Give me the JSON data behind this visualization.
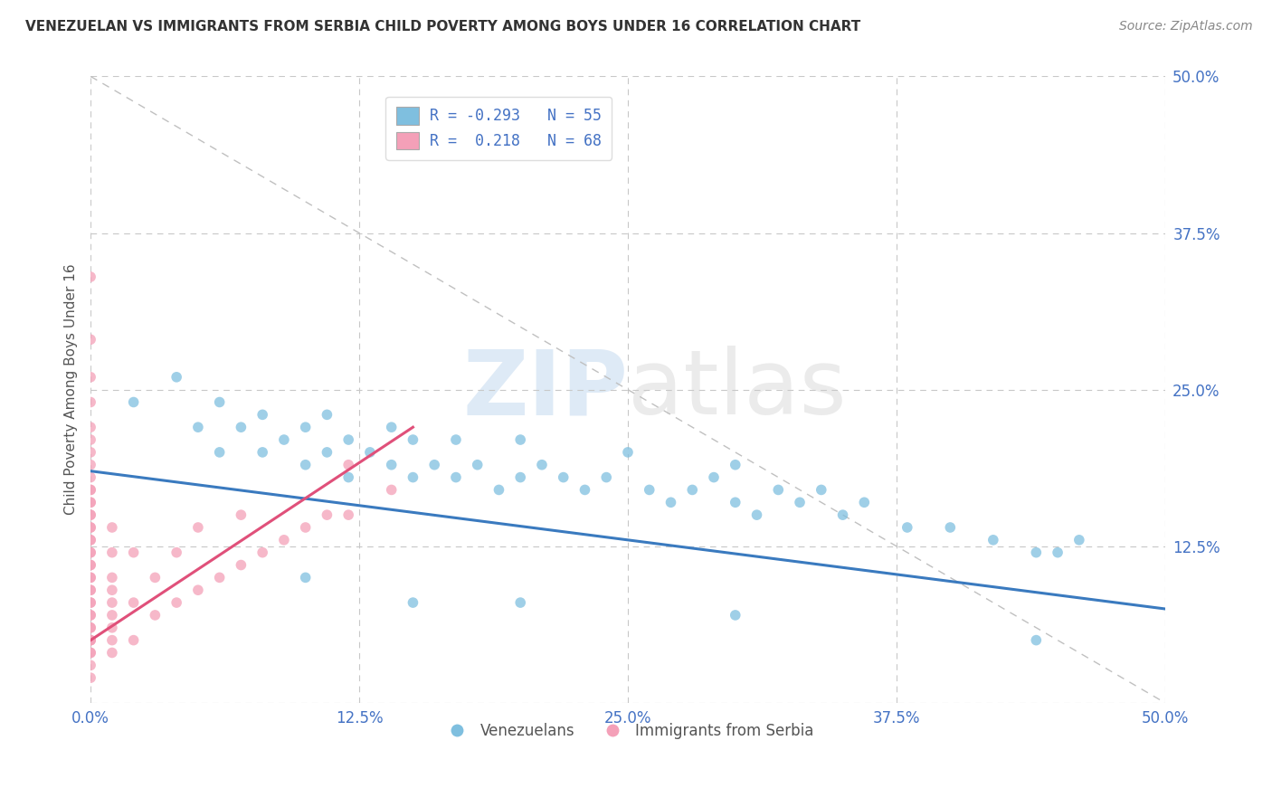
{
  "title": "VENEZUELAN VS IMMIGRANTS FROM SERBIA CHILD POVERTY AMONG BOYS UNDER 16 CORRELATION CHART",
  "source": "Source: ZipAtlas.com",
  "ylabel": "Child Poverty Among Boys Under 16",
  "xlim": [
    0.0,
    0.5
  ],
  "ylim": [
    0.0,
    0.5
  ],
  "xtick_vals": [
    0.0,
    0.125,
    0.25,
    0.375,
    0.5
  ],
  "xtick_labels": [
    "0.0%",
    "12.5%",
    "25.0%",
    "37.5%",
    "50.0%"
  ],
  "ytick_vals": [
    0.0,
    0.125,
    0.25,
    0.375,
    0.5
  ],
  "ytick_labels": [
    "",
    "12.5%",
    "25.0%",
    "37.5%",
    "50.0%"
  ],
  "blue_color": "#7fbfdf",
  "pink_color": "#f4a0b8",
  "blue_line_color": "#3a7abf",
  "pink_line_color": "#e0507a",
  "watermark_zip": "ZIP",
  "watermark_atlas": "atlas",
  "legend_line1": "R = -0.293   N = 55",
  "legend_line2": "R =  0.218   N = 68",
  "venezuelan_label": "Venezuelans",
  "serbia_label": "Immigrants from Serbia",
  "blue_scatter_x": [
    0.02,
    0.04,
    0.05,
    0.06,
    0.06,
    0.07,
    0.08,
    0.08,
    0.09,
    0.1,
    0.1,
    0.11,
    0.11,
    0.12,
    0.12,
    0.13,
    0.14,
    0.14,
    0.15,
    0.15,
    0.16,
    0.17,
    0.17,
    0.18,
    0.19,
    0.2,
    0.2,
    0.21,
    0.22,
    0.23,
    0.24,
    0.25,
    0.26,
    0.27,
    0.28,
    0.29,
    0.3,
    0.3,
    0.31,
    0.32,
    0.33,
    0.34,
    0.35,
    0.36,
    0.38,
    0.4,
    0.42,
    0.44,
    0.45,
    0.46,
    0.1,
    0.15,
    0.2,
    0.3,
    0.44
  ],
  "blue_scatter_y": [
    0.24,
    0.26,
    0.22,
    0.2,
    0.24,
    0.22,
    0.2,
    0.23,
    0.21,
    0.19,
    0.22,
    0.2,
    0.23,
    0.18,
    0.21,
    0.2,
    0.19,
    0.22,
    0.18,
    0.21,
    0.19,
    0.18,
    0.21,
    0.19,
    0.17,
    0.18,
    0.21,
    0.19,
    0.18,
    0.17,
    0.18,
    0.2,
    0.17,
    0.16,
    0.17,
    0.18,
    0.16,
    0.19,
    0.15,
    0.17,
    0.16,
    0.17,
    0.15,
    0.16,
    0.14,
    0.14,
    0.13,
    0.12,
    0.12,
    0.13,
    0.1,
    0.08,
    0.08,
    0.07,
    0.05
  ],
  "pink_scatter_x": [
    0.0,
    0.0,
    0.0,
    0.0,
    0.0,
    0.0,
    0.0,
    0.0,
    0.0,
    0.0,
    0.0,
    0.0,
    0.0,
    0.0,
    0.0,
    0.0,
    0.0,
    0.0,
    0.0,
    0.0,
    0.0,
    0.0,
    0.0,
    0.0,
    0.0,
    0.0,
    0.0,
    0.0,
    0.0,
    0.0,
    0.0,
    0.0,
    0.0,
    0.0,
    0.0,
    0.0,
    0.0,
    0.0,
    0.0,
    0.0,
    0.01,
    0.01,
    0.01,
    0.01,
    0.01,
    0.01,
    0.01,
    0.01,
    0.01,
    0.02,
    0.02,
    0.02,
    0.03,
    0.03,
    0.04,
    0.04,
    0.05,
    0.05,
    0.06,
    0.07,
    0.07,
    0.08,
    0.09,
    0.1,
    0.11,
    0.12,
    0.12,
    0.14
  ],
  "pink_scatter_y": [
    0.02,
    0.03,
    0.04,
    0.04,
    0.05,
    0.05,
    0.05,
    0.06,
    0.06,
    0.07,
    0.07,
    0.08,
    0.08,
    0.09,
    0.09,
    0.1,
    0.1,
    0.11,
    0.11,
    0.12,
    0.12,
    0.13,
    0.13,
    0.14,
    0.14,
    0.15,
    0.15,
    0.16,
    0.16,
    0.17,
    0.17,
    0.18,
    0.19,
    0.2,
    0.21,
    0.22,
    0.24,
    0.26,
    0.29,
    0.34,
    0.04,
    0.05,
    0.06,
    0.07,
    0.08,
    0.09,
    0.1,
    0.12,
    0.14,
    0.05,
    0.08,
    0.12,
    0.07,
    0.1,
    0.08,
    0.12,
    0.09,
    0.14,
    0.1,
    0.11,
    0.15,
    0.12,
    0.13,
    0.14,
    0.15,
    0.15,
    0.19,
    0.17
  ],
  "blue_trend_x": [
    0.0,
    0.5
  ],
  "blue_trend_y": [
    0.185,
    0.075
  ],
  "pink_trend_x": [
    0.0,
    0.15
  ],
  "pink_trend_y": [
    0.05,
    0.22
  ]
}
